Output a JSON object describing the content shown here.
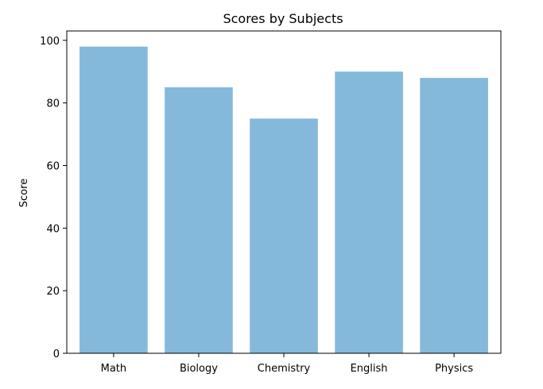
{
  "chart_data": {
    "type": "bar",
    "title": "Scores by Subjects",
    "xlabel": "",
    "ylabel": "Score",
    "categories": [
      "Math",
      "Biology",
      "Chemistry",
      "English",
      "Physics"
    ],
    "values": [
      98,
      85,
      75,
      90,
      88
    ],
    "ylim": [
      0,
      103
    ],
    "yticks": [
      0,
      20,
      40,
      60,
      80,
      100
    ],
    "grid": false,
    "bar_color": "#85b9dc",
    "axis_color": "#000000"
  }
}
